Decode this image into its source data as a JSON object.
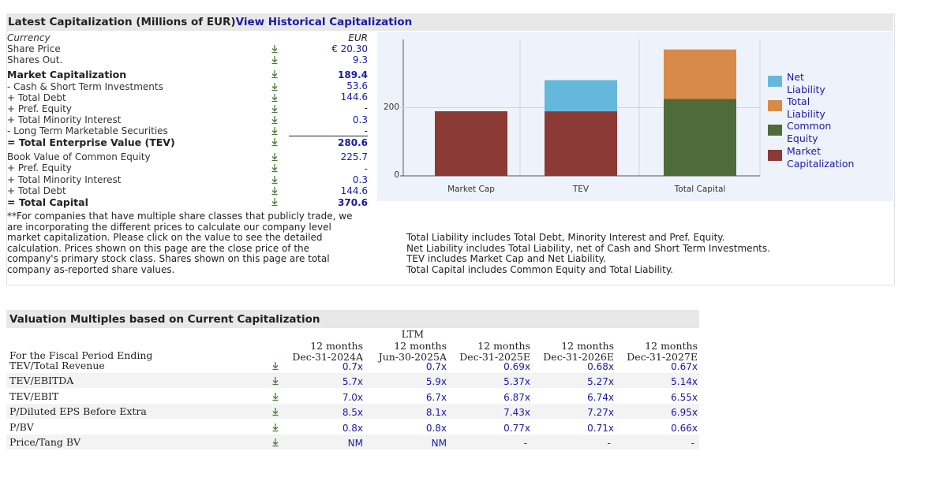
{
  "capitalization": {
    "title": "Latest Capitalization (Millions of EUR)",
    "history_link": "View Historical Capitalization",
    "rows": [
      {
        "label": "Currency",
        "value": "EUR",
        "style": "italic",
        "icon": false
      },
      {
        "label": "Share Price",
        "value": "€ 20.30",
        "style": "normal",
        "icon": true
      },
      {
        "label": "Shares Out.",
        "value": "9.3",
        "style": "normal",
        "icon": true
      },
      {
        "label": "Market Capitalization",
        "value": "189.4",
        "style": "bold",
        "icon": true
      },
      {
        "label": "- Cash & Short Term Investments",
        "value": "53.6",
        "style": "normal",
        "icon": true
      },
      {
        "label": "+ Total Debt",
        "value": "144.6",
        "style": "normal",
        "icon": true
      },
      {
        "label": "+ Pref. Equity",
        "value": "-",
        "style": "normal",
        "icon": true
      },
      {
        "label": "+ Total Minority Interest",
        "value": "0.3",
        "style": "normal",
        "icon": true
      },
      {
        "label": "- Long Term Marketable Securities",
        "value": "-",
        "style": "normal",
        "icon": true
      },
      {
        "label": "= Total Enterprise Value (TEV)",
        "value": "280.6",
        "style": "bold",
        "icon": true
      },
      {
        "label": "Book Value of Common Equity",
        "value": "225.7",
        "style": "normal",
        "icon": true
      },
      {
        "label": "+ Pref. Equity",
        "value": "-",
        "style": "normal",
        "icon": true
      },
      {
        "label": "+ Total Minority Interest",
        "value": "0.3",
        "style": "normal",
        "icon": true
      },
      {
        "label": "+ Total Debt",
        "value": "144.6",
        "style": "normal",
        "icon": true
      },
      {
        "label": "= Total Capital",
        "value": "370.6",
        "style": "bold",
        "icon": true
      }
    ],
    "footnote": "**For companies that have multiple share classes that publicly trade, we are incorporating the different prices to calculate our company level market capitalization. Please click on the value to see the detailed calculation. Prices shown on this page are the close price of the company's primary stock class. Shares shown on this page are total company as-reported share values."
  },
  "chart_notes": [
    "Total Liability includes Total Debt, Minority Interest and Pref. Equity.",
    "Net Liability includes Total Liability, net of Cash and Short Term Investments.",
    "TEV includes Market Cap and Net Liability.",
    "Total Capital includes Common Equity and Total Liability."
  ],
  "chart_data": {
    "type": "bar",
    "stacked": true,
    "categories": [
      "Market Cap",
      "TEV",
      "Total Capital"
    ],
    "series": [
      {
        "name": "Market Capitalization",
        "color": "#8b3a35",
        "values": [
          189.4,
          189.4,
          0
        ]
      },
      {
        "name": "Net Liability",
        "color": "#65b8dc",
        "values": [
          0,
          91.2,
          0
        ]
      },
      {
        "name": "Common Equity",
        "color": "#4f6b3a",
        "values": [
          0,
          0,
          225.7
        ]
      },
      {
        "name": "Total Liability",
        "color": "#d88a48",
        "values": [
          0,
          0,
          144.9
        ]
      }
    ],
    "legend_order": [
      "Net Liability",
      "Total Liability",
      "Common Equity",
      "Market Capitalization"
    ],
    "y_ticks": [
      "0",
      "200"
    ],
    "ylim": [
      0,
      400
    ],
    "grid": true,
    "legend_position": "right"
  },
  "valuation": {
    "title": "Valuation Multiples based on Current Capitalization",
    "period_label": "For the Fiscal Period Ending",
    "columns": [
      {
        "l1": "",
        "l2": "12 months",
        "l3": "Dec-31-2024A"
      },
      {
        "l1": "LTM",
        "l2": "12 months",
        "l3": "Jun-30-2025A"
      },
      {
        "l1": "",
        "l2": "12 months",
        "l3": "Dec-31-2025E"
      },
      {
        "l1": "",
        "l2": "12 months",
        "l3": "Dec-31-2026E"
      },
      {
        "l1": "",
        "l2": "12 months",
        "l3": "Dec-31-2027E"
      }
    ],
    "rows": [
      {
        "label": "TEV/Total Revenue",
        "values": [
          "0.7x",
          "0.7x",
          "0.69x",
          "0.68x",
          "0.67x"
        ]
      },
      {
        "label": "TEV/EBITDA",
        "values": [
          "5.7x",
          "5.9x",
          "5.37x",
          "5.27x",
          "5.14x"
        ]
      },
      {
        "label": "TEV/EBIT",
        "values": [
          "7.0x",
          "6.7x",
          "6.87x",
          "6.74x",
          "6.55x"
        ]
      },
      {
        "label": "P/Diluted EPS Before Extra",
        "values": [
          "8.5x",
          "8.1x",
          "7.43x",
          "7.27x",
          "6.95x"
        ]
      },
      {
        "label": "P/BV",
        "values": [
          "0.8x",
          "0.8x",
          "0.77x",
          "0.71x",
          "0.66x"
        ]
      },
      {
        "label": "Price/Tang BV",
        "values": [
          "NM",
          "NM",
          "-",
          "-",
          "-"
        ]
      }
    ]
  }
}
